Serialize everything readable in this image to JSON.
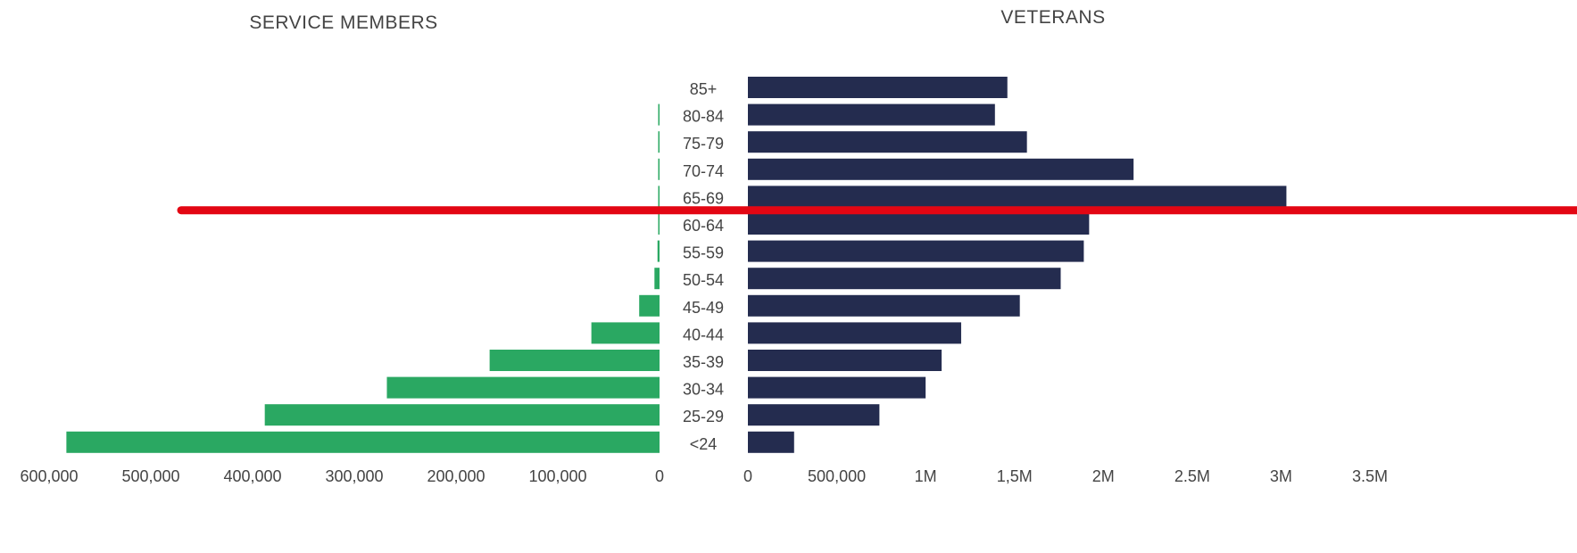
{
  "chart_data": {
    "type": "bar",
    "categories": [
      "85+",
      "80-84",
      "75-79",
      "70-74",
      "65-69",
      "60-64",
      "55-59",
      "50-54",
      "45-49",
      "40-44",
      "35-39",
      "30-34",
      "25-29",
      "<24"
    ],
    "left_panel": {
      "title": "SERVICE MEMBERS",
      "color": "#2aa862",
      "values": [
        0,
        1000,
        1000,
        1000,
        1000,
        1000,
        2000,
        5000,
        20000,
        67000,
        167000,
        268000,
        388000,
        583000
      ],
      "xlim": [
        0,
        600000
      ],
      "xticks": [
        {
          "value": 600000,
          "label": "600,000"
        },
        {
          "value": 500000,
          "label": "500,000"
        },
        {
          "value": 400000,
          "label": "400,000"
        },
        {
          "value": 300000,
          "label": "300,000"
        },
        {
          "value": 200000,
          "label": "200,000"
        },
        {
          "value": 100000,
          "label": "100,000"
        },
        {
          "value": 0,
          "label": "0"
        }
      ]
    },
    "right_panel": {
      "title": "VETERANS",
      "color": "#242c4f",
      "values": [
        1460000,
        1390000,
        1570000,
        2170000,
        3030000,
        1920000,
        1890000,
        1760000,
        1530000,
        1200000,
        1090000,
        1000000,
        740000,
        260000
      ],
      "xlim": [
        0,
        3500000
      ],
      "xticks": [
        {
          "value": 0,
          "label": "0"
        },
        {
          "value": 500000,
          "label": "500,000"
        },
        {
          "value": 1000000,
          "label": "1M"
        },
        {
          "value": 1500000,
          "label": "1,5M"
        },
        {
          "value": 2000000,
          "label": "2M"
        },
        {
          "value": 2500000,
          "label": "2.5M"
        },
        {
          "value": 3000000,
          "label": "3M"
        },
        {
          "value": 3500000,
          "label": "3.5M"
        }
      ]
    },
    "annotation_line": {
      "color": "#e30613",
      "between": [
        "65-69",
        "60-64"
      ]
    }
  }
}
